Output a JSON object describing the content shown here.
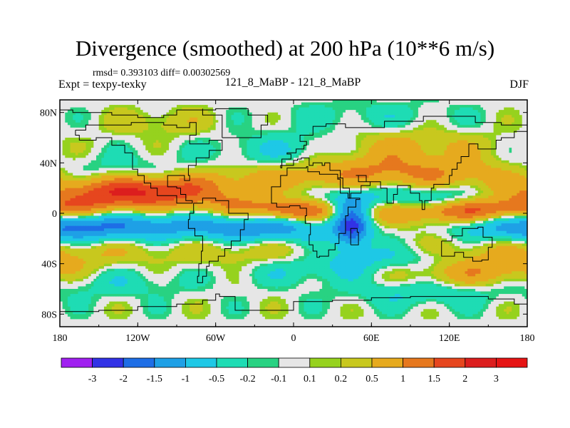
{
  "title": "Divergence (smoothed) at 200 hPa (10**6 m/s)",
  "stats": "rmsd= 0.393103 diff= 0.00302569",
  "experiment": "Expt = texpy-texky",
  "comparison": "121_8_MaBP - 121_8_MaBP",
  "season": "DJF",
  "chart_data": {
    "type": "heatmap",
    "projection": "cylindrical equidistant",
    "x_range": [
      -180,
      180
    ],
    "y_range": [
      -90,
      90
    ],
    "x_ticks": [
      {
        "value": -180,
        "label": "180"
      },
      {
        "value": -120,
        "label": "120W"
      },
      {
        "value": -60,
        "label": "60W"
      },
      {
        "value": 0,
        "label": "0"
      },
      {
        "value": 60,
        "label": "60E"
      },
      {
        "value": 120,
        "label": "120E"
      },
      {
        "value": 180,
        "label": "180"
      }
    ],
    "y_ticks": [
      {
        "value": 80,
        "label": "80N"
      },
      {
        "value": 40,
        "label": "40N"
      },
      {
        "value": 0,
        "label": "0"
      },
      {
        "value": -40,
        "label": "40S"
      },
      {
        "value": -80,
        "label": "80S"
      }
    ],
    "contour_levels": [
      -3,
      -2,
      -1.5,
      -1,
      -0.5,
      -0.2,
      -0.1,
      0.1,
      0.2,
      0.5,
      1,
      1.5,
      2,
      3
    ],
    "colorbar_labels": [
      "-3",
      "-2",
      "-1.5",
      "-1",
      "-0.5",
      "-0.2",
      "-0.1",
      "0.1",
      "0.2",
      "0.5",
      "1",
      "1.5",
      "2",
      "3"
    ],
    "colorbar_colors": [
      "#a020f0",
      "#3232e6",
      "#1e6ee6",
      "#1ea0e6",
      "#1ec8e6",
      "#1edcb4",
      "#28d282",
      "#e6e6e6",
      "#96d21e",
      "#c8c81e",
      "#e6aa1e",
      "#e6781e",
      "#e6461e",
      "#dc1e1e",
      "#e61414"
    ],
    "features": [
      {
        "lon": -160,
        "lat": 10,
        "sx": 40,
        "sy": 10,
        "amp": 1.2
      },
      {
        "lon": -100,
        "lat": 15,
        "sx": 35,
        "sy": 8,
        "amp": 0.9
      },
      {
        "lon": -40,
        "lat": 5,
        "sx": 30,
        "sy": 8,
        "amp": 0.8
      },
      {
        "lon": 0,
        "lat": 2,
        "sx": 22,
        "sy": 6,
        "amp": 1.3
      },
      {
        "lon": 60,
        "lat": 3,
        "sx": 35,
        "sy": 8,
        "amp": 0.9
      },
      {
        "lon": 140,
        "lat": 2,
        "sx": 40,
        "sy": 7,
        "amp": 1.8
      },
      {
        "lon": -150,
        "lat": -10,
        "sx": 40,
        "sy": 8,
        "amp": -1.0
      },
      {
        "lon": -90,
        "lat": -10,
        "sx": 40,
        "sy": 8,
        "amp": -0.8
      },
      {
        "lon": -20,
        "lat": -12,
        "sx": 35,
        "sy": 8,
        "amp": -1.4
      },
      {
        "lon": 45,
        "lat": -8,
        "sx": 10,
        "sy": 14,
        "amp": -2.2
      },
      {
        "lon": 60,
        "lat": 10,
        "sx": 40,
        "sy": 8,
        "amp": -0.9
      },
      {
        "lon": 120,
        "lat": 12,
        "sx": 40,
        "sy": 8,
        "amp": -0.8
      },
      {
        "lon": 170,
        "lat": -10,
        "sx": 35,
        "sy": 10,
        "amp": -1.1
      },
      {
        "lon": -135,
        "lat": 30,
        "sx": 40,
        "sy": 10,
        "amp": -0.6
      },
      {
        "lon": -120,
        "lat": 22,
        "sx": 40,
        "sy": 8,
        "amp": 1.2
      },
      {
        "lon": -20,
        "lat": 28,
        "sx": 45,
        "sy": 8,
        "amp": 0.6
      },
      {
        "lon": 60,
        "lat": 35,
        "sx": 40,
        "sy": 12,
        "amp": 0.9
      },
      {
        "lon": 130,
        "lat": 30,
        "sx": 40,
        "sy": 10,
        "amp": 0.7
      },
      {
        "lon": 0,
        "lat": 50,
        "sx": 40,
        "sy": 10,
        "amp": -0.6
      },
      {
        "lon": 90,
        "lat": 55,
        "sx": 45,
        "sy": 8,
        "amp": 0.5
      },
      {
        "lon": -150,
        "lat": -30,
        "sx": 40,
        "sy": 8,
        "amp": 0.4
      },
      {
        "lon": -30,
        "lat": -30,
        "sx": 45,
        "sy": 10,
        "amp": 0.5
      },
      {
        "lon": 80,
        "lat": -35,
        "sx": 45,
        "sy": 8,
        "amp": -0.6
      },
      {
        "lon": 140,
        "lat": -30,
        "sx": 40,
        "sy": 10,
        "amp": 0.6
      },
      {
        "lon": 10,
        "lat": -45,
        "sx": 40,
        "sy": 8,
        "amp": -0.5
      },
      {
        "lon": 120,
        "lat": -50,
        "sx": 40,
        "sy": 8,
        "amp": 0.6
      },
      {
        "lon": -140,
        "lat": -55,
        "sx": 40,
        "sy": 8,
        "amp": -0.4
      },
      {
        "lon": 100,
        "lat": -62,
        "sx": 40,
        "sy": 8,
        "amp": -0.6
      },
      {
        "lon": 160,
        "lat": -45,
        "sx": 30,
        "sy": 8,
        "amp": 0.5
      },
      {
        "lon": -100,
        "lat": 72,
        "sx": 30,
        "sy": 8,
        "amp": 0.4
      },
      {
        "lon": 60,
        "lat": 78,
        "sx": 50,
        "sy": 8,
        "amp": -0.3
      }
    ],
    "coastlines": [
      [
        [
          -168,
          66
        ],
        [
          -160,
          70
        ],
        [
          -140,
          70
        ],
        [
          -125,
          72
        ],
        [
          -100,
          70
        ],
        [
          -90,
          68
        ],
        [
          -80,
          72
        ],
        [
          -75,
          62
        ],
        [
          -80,
          55
        ],
        [
          -65,
          58
        ],
        [
          -55,
          50
        ],
        [
          -65,
          44
        ],
        [
          -75,
          38
        ],
        [
          -81,
          30
        ],
        [
          -80,
          26
        ],
        [
          -84,
          30
        ],
        [
          -90,
          30
        ],
        [
          -97,
          27
        ],
        [
          -97,
          21
        ],
        [
          -90,
          20
        ],
        [
          -87,
          15
        ],
        [
          -83,
          10
        ],
        [
          -78,
          8
        ],
        [
          -90,
          14
        ],
        [
          -105,
          20
        ],
        [
          -110,
          24
        ],
        [
          -115,
          30
        ],
        [
          -120,
          35
        ],
        [
          -124,
          42
        ],
        [
          -124,
          48
        ],
        [
          -130,
          54
        ],
        [
          -140,
          60
        ],
        [
          -152,
          58
        ],
        [
          -160,
          58
        ],
        [
          -165,
          62
        ],
        [
          -168,
          66
        ]
      ],
      [
        [
          -77,
          8
        ],
        [
          -70,
          12
        ],
        [
          -60,
          10
        ],
        [
          -50,
          0
        ],
        [
          -35,
          -5
        ],
        [
          -38,
          -13
        ],
        [
          -41,
          -22
        ],
        [
          -48,
          -28
        ],
        [
          -53,
          -34
        ],
        [
          -58,
          -38
        ],
        [
          -65,
          -42
        ],
        [
          -67,
          -50
        ],
        [
          -70,
          -55
        ],
        [
          -74,
          -50
        ],
        [
          -73,
          -40
        ],
        [
          -71,
          -30
        ],
        [
          -70,
          -18
        ],
        [
          -76,
          -12
        ],
        [
          -81,
          -5
        ],
        [
          -80,
          0
        ],
        [
          -77,
          8
        ]
      ],
      [
        [
          -55,
          60
        ],
        [
          -42,
          60
        ],
        [
          -25,
          70
        ],
        [
          -20,
          78
        ],
        [
          -35,
          83
        ],
        [
          -60,
          82
        ],
        [
          -70,
          78
        ],
        [
          -55,
          70
        ],
        [
          -55,
          60
        ]
      ],
      [
        [
          -10,
          36
        ],
        [
          -9,
          43
        ],
        [
          -2,
          47
        ],
        [
          -5,
          48
        ],
        [
          2,
          51
        ],
        [
          8,
          54
        ],
        [
          10,
          57
        ],
        [
          5,
          62
        ],
        [
          15,
          69
        ],
        [
          25,
          71
        ],
        [
          40,
          68
        ],
        [
          50,
          68
        ],
        [
          70,
          73
        ],
        [
          100,
          77
        ],
        [
          140,
          72
        ],
        [
          160,
          70
        ],
        [
          180,
          68
        ],
        [
          180,
          65
        ],
        [
          170,
          60
        ],
        [
          160,
          58
        ],
        [
          156,
          51
        ],
        [
          142,
          55
        ],
        [
          135,
          45
        ],
        [
          129,
          40
        ],
        [
          126,
          35
        ],
        [
          122,
          30
        ],
        [
          120,
          23
        ],
        [
          108,
          20
        ],
        [
          106,
          10
        ],
        [
          101,
          3
        ],
        [
          99,
          10
        ],
        [
          97,
          16
        ],
        [
          90,
          22
        ],
        [
          80,
          15
        ],
        [
          77,
          8
        ],
        [
          72,
          20
        ],
        [
          67,
          25
        ],
        [
          57,
          25
        ],
        [
          50,
          30
        ],
        [
          48,
          30
        ],
        [
          56,
          25
        ],
        [
          59,
          22
        ],
        [
          52,
          16
        ],
        [
          44,
          12
        ],
        [
          42,
          16
        ],
        [
          36,
          27
        ],
        [
          34,
          28
        ],
        [
          36,
          34
        ],
        [
          28,
          36
        ],
        [
          28,
          40
        ],
        [
          24,
          38
        ],
        [
          22,
          40
        ],
        [
          15,
          38
        ],
        [
          12,
          44
        ],
        [
          6,
          43
        ],
        [
          3,
          42
        ],
        [
          0,
          38
        ],
        [
          -10,
          36
        ]
      ],
      [
        [
          -17,
          15
        ],
        [
          -17,
          21
        ],
        [
          -10,
          30
        ],
        [
          -5,
          36
        ],
        [
          10,
          37
        ],
        [
          11,
          33
        ],
        [
          20,
          31
        ],
        [
          32,
          31
        ],
        [
          34,
          28
        ],
        [
          38,
          20
        ],
        [
          43,
          12
        ],
        [
          51,
          11
        ],
        [
          48,
          5
        ],
        [
          42,
          -2
        ],
        [
          40,
          -10
        ],
        [
          40,
          -16
        ],
        [
          35,
          -24
        ],
        [
          32,
          -29
        ],
        [
          27,
          -34
        ],
        [
          20,
          -35
        ],
        [
          18,
          -30
        ],
        [
          15,
          -25
        ],
        [
          12,
          -17
        ],
        [
          13,
          -8
        ],
        [
          9,
          -2
        ],
        [
          10,
          4
        ],
        [
          5,
          6
        ],
        [
          -3,
          5
        ],
        [
          -8,
          5
        ],
        [
          -13,
          8
        ],
        [
          -17,
          15
        ]
      ],
      [
        [
          44,
          -25
        ],
        [
          50,
          -15
        ],
        [
          49,
          -12
        ],
        [
          44,
          -16
        ],
        [
          44,
          -25
        ]
      ],
      [
        [
          114,
          -22
        ],
        [
          122,
          -18
        ],
        [
          130,
          -12
        ],
        [
          137,
          -12
        ],
        [
          142,
          -11
        ],
        [
          146,
          -19
        ],
        [
          153,
          -27
        ],
        [
          150,
          -37
        ],
        [
          145,
          -38
        ],
        [
          138,
          -35
        ],
        [
          131,
          -31
        ],
        [
          124,
          -34
        ],
        [
          115,
          -34
        ],
        [
          114,
          -22
        ]
      ],
      [
        [
          -180,
          -78
        ],
        [
          -150,
          -77
        ],
        [
          -120,
          -74
        ],
        [
          -90,
          -72
        ],
        [
          -70,
          -69
        ],
        [
          -60,
          -64
        ],
        [
          -57,
          -66
        ],
        [
          -45,
          -77
        ],
        [
          0,
          -70
        ],
        [
          30,
          -69
        ],
        [
          60,
          -67
        ],
        [
          90,
          -66
        ],
        [
          120,
          -66
        ],
        [
          150,
          -68
        ],
        [
          170,
          -72
        ],
        [
          180,
          -78
        ]
      ],
      [
        [
          -180,
          82
        ],
        [
          -170,
          80
        ],
        [
          -150,
          80
        ],
        [
          -140,
          78
        ],
        [
          -120,
          76
        ],
        [
          -100,
          78
        ],
        [
          -90,
          82
        ],
        [
          -70,
          83
        ]
      ]
    ]
  }
}
